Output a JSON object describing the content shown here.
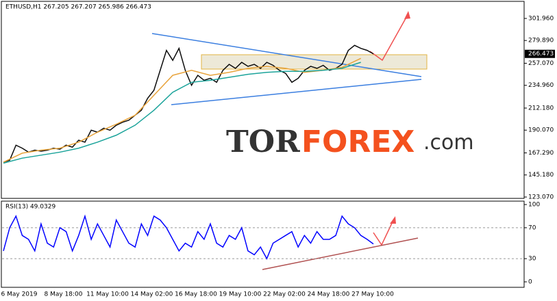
{
  "chart_data": [
    {
      "type": "line",
      "title": "ETHUSD,H1 267.205 267.207 265.986 266.473",
      "x": [
        0,
        1,
        2,
        3,
        4,
        5,
        6,
        7,
        8,
        9,
        10,
        11,
        12,
        13,
        14,
        15,
        16,
        17,
        18,
        19,
        20,
        21,
        22,
        23,
        24,
        25,
        26,
        27,
        28,
        29,
        30,
        31,
        32,
        33,
        34,
        35,
        36,
        37,
        38,
        39,
        40,
        41,
        42,
        43,
        44,
        45,
        46,
        47,
        48,
        49,
        50,
        51,
        52,
        53,
        54,
        55,
        56,
        57,
        58,
        59
      ],
      "x_tick_labels": [
        "6 May 2019",
        "8 May 18:00",
        "11 May 10:00",
        "14 May 02:00",
        "16 May 18:00",
        "19 May 10:00",
        "22 May 02:00",
        "24 May 18:00",
        "27 May 10:00"
      ],
      "series": [
        {
          "name": "ETHUSD",
          "color": "#0b0b0b",
          "x": [
            0,
            1,
            2,
            3,
            4,
            5,
            6,
            7,
            8,
            9,
            10,
            11,
            12,
            13,
            14,
            15,
            16,
            17,
            18,
            19,
            20,
            21,
            22,
            23,
            24,
            25,
            26,
            27,
            28,
            29,
            30,
            31,
            32,
            33,
            34,
            35,
            36,
            37,
            38,
            39,
            40,
            41,
            42,
            43,
            44,
            45,
            46,
            47,
            48,
            49,
            50,
            51,
            52,
            53,
            54,
            55,
            56,
            57,
            58,
            59
          ],
          "values": [
            158,
            160,
            175,
            172,
            168,
            170,
            169,
            170,
            172,
            171,
            175,
            173,
            180,
            178,
            190,
            188,
            192,
            190,
            195,
            198,
            200,
            205,
            210,
            222,
            230,
            250,
            270,
            260,
            272,
            250,
            235,
            245,
            240,
            242,
            238,
            250,
            256,
            252,
            258,
            254,
            256,
            252,
            258,
            255,
            250,
            247,
            238,
            242,
            250,
            254,
            252,
            255,
            250,
            252,
            256,
            270,
            275,
            272,
            270,
            266.473
          ]
        },
        {
          "name": "MA fast",
          "color": "#e8a33b",
          "x": [
            0,
            3,
            6,
            9,
            12,
            15,
            18,
            21,
            24,
            27,
            30,
            33,
            36,
            39,
            42,
            45,
            48,
            51,
            54,
            57
          ],
          "values": [
            158,
            167,
            170,
            172,
            178,
            188,
            196,
            205,
            225,
            245,
            250,
            245,
            248,
            252,
            254,
            252,
            248,
            250,
            253,
            262
          ]
        },
        {
          "name": "MA slow",
          "color": "#1aa39a",
          "x": [
            0,
            3,
            6,
            9,
            12,
            15,
            18,
            21,
            24,
            27,
            30,
            33,
            36,
            39,
            42,
            45,
            48,
            51,
            54,
            57
          ],
          "values": [
            157,
            162,
            165,
            168,
            172,
            178,
            185,
            195,
            210,
            228,
            238,
            240,
            243,
            246,
            248,
            249,
            249,
            250,
            252,
            258
          ]
        }
      ],
      "current_price": {
        "value": 266.473,
        "label": "266.473"
      },
      "xlim": [
        0,
        59
      ],
      "ylim": [
        121.7,
        317.7
      ],
      "yticks": [
        {
          "value": 301.96,
          "label": "301.960"
        },
        {
          "value": 279.89,
          "label": "279.890"
        },
        {
          "value": 257.07,
          "label": "257.070"
        },
        {
          "value": 234.96,
          "label": "234.960"
        },
        {
          "value": 212.18,
          "label": "212.180"
        },
        {
          "value": 190.07,
          "label": "190.070"
        },
        {
          "value": 167.29,
          "label": "167.290"
        },
        {
          "value": 145.18,
          "label": "145.180"
        },
        {
          "value": 123.07,
          "label": "123.070"
        }
      ],
      "watermark": [
        "TOR",
        "FOREX",
        ".com"
      ]
    },
    {
      "type": "line",
      "title": "RSI(13) 49.0329",
      "series": [
        {
          "name": "RSI",
          "color": "#0000ff",
          "x": [
            0,
            1,
            2,
            3,
            4,
            5,
            6,
            7,
            8,
            9,
            10,
            11,
            12,
            13,
            14,
            15,
            16,
            17,
            18,
            19,
            20,
            21,
            22,
            23,
            24,
            25,
            26,
            27,
            28,
            29,
            30,
            31,
            32,
            33,
            34,
            35,
            36,
            37,
            38,
            39,
            40,
            41,
            42,
            43,
            44,
            45,
            46,
            47,
            48,
            49,
            50,
            51,
            52,
            53,
            54,
            55,
            56,
            57,
            58,
            59
          ],
          "values": [
            40,
            70,
            85,
            60,
            55,
            40,
            75,
            50,
            45,
            70,
            65,
            40,
            60,
            85,
            55,
            75,
            60,
            45,
            80,
            65,
            50,
            45,
            75,
            60,
            85,
            80,
            70,
            55,
            40,
            50,
            45,
            65,
            55,
            75,
            50,
            45,
            60,
            55,
            70,
            40,
            35,
            45,
            30,
            50,
            55,
            60,
            65,
            45,
            60,
            50,
            65,
            55,
            55,
            60,
            85,
            75,
            70,
            60,
            55,
            49.0329
          ]
        }
      ],
      "xlim": [
        0,
        59
      ],
      "ylim": [
        0,
        100
      ],
      "yticks": [
        100,
        70,
        30,
        0
      ],
      "levels": [
        70,
        30
      ]
    }
  ]
}
